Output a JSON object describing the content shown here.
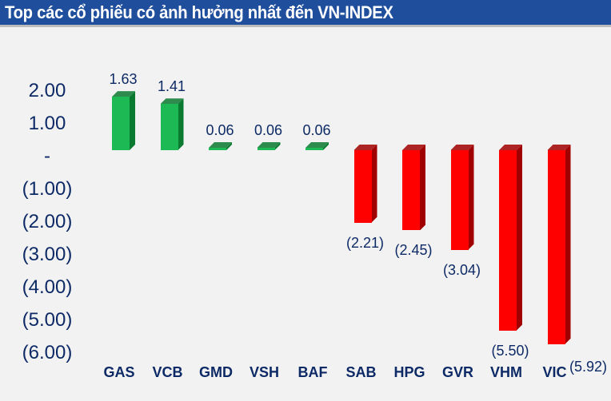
{
  "header": {
    "title": "Top các cổ phiếu có ảnh hưởng nhất đến VN-INDEX"
  },
  "colors": {
    "header_bg": "#1f4e9c",
    "positive": "#1db954",
    "positive_side": "#0a7a30",
    "negative": "#ff0000",
    "negative_side": "#a00000",
    "text": "#0d2a66"
  },
  "y_axis": {
    "ticks": [
      "2.00",
      "1.00",
      "-",
      "(1.00)",
      "(2.00)",
      "(3.00)",
      "(4.00)",
      "(5.00)",
      "(6.00)"
    ]
  },
  "bars": [
    {
      "ticker": "GAS",
      "value": 1.63,
      "label": "1.63"
    },
    {
      "ticker": "VCB",
      "value": 1.41,
      "label": "1.41"
    },
    {
      "ticker": "GMD",
      "value": 0.06,
      "label": "0.06"
    },
    {
      "ticker": "VSH",
      "value": 0.06,
      "label": "0.06"
    },
    {
      "ticker": "BAF",
      "value": 0.06,
      "label": "0.06"
    },
    {
      "ticker": "SAB",
      "value": -2.21,
      "label": "(2.21)"
    },
    {
      "ticker": "HPG",
      "value": -2.45,
      "label": "(2.45)"
    },
    {
      "ticker": "GVR",
      "value": -3.04,
      "label": "(3.04)"
    },
    {
      "ticker": "VHM",
      "value": -5.5,
      "label": "(5.50)"
    },
    {
      "ticker": "VIC",
      "value": -5.92,
      "label": "(5.92)"
    }
  ],
  "chart_data": {
    "type": "bar",
    "title": "Top các cổ phiếu có ảnh hưởng nhất đến VN-INDEX",
    "categories": [
      "GAS",
      "VCB",
      "GMD",
      "VSH",
      "BAF",
      "SAB",
      "HPG",
      "GVR",
      "VHM",
      "VIC"
    ],
    "values": [
      1.63,
      1.41,
      0.06,
      0.06,
      0.06,
      -2.21,
      -2.45,
      -3.04,
      -5.5,
      -5.92
    ],
    "data_labels": [
      "1.63",
      "1.41",
      "0.06",
      "0.06",
      "0.06",
      "(2.21)",
      "(2.45)",
      "(3.04)",
      "(5.50)",
      "(5.92)"
    ],
    "xlabel": "",
    "ylabel": "",
    "ylim": [
      -6,
      2
    ],
    "y_ticks": [
      "2.00",
      "1.00",
      "-",
      "(1.00)",
      "(2.00)",
      "(3.00)",
      "(4.00)",
      "(5.00)",
      "(6.00)"
    ],
    "grid": false,
    "legend": null,
    "style": "3d-bar, positive green, negative red"
  }
}
